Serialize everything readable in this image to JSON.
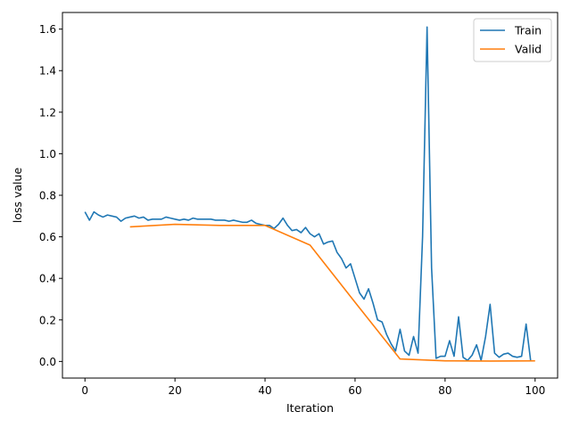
{
  "chart_data": {
    "type": "line",
    "title": "",
    "xlabel": "Iteration",
    "ylabel": "loss value",
    "xlim": [
      -5,
      105
    ],
    "ylim": [
      -0.08,
      1.68
    ],
    "xticks": [
      0,
      20,
      40,
      60,
      80,
      100
    ],
    "yticks": [
      0.0,
      0.2,
      0.4,
      0.6,
      0.8,
      1.0,
      1.2,
      1.4,
      1.6
    ],
    "xtick_labels": [
      "0",
      "20",
      "40",
      "60",
      "80",
      "100"
    ],
    "ytick_labels": [
      "0.0",
      "0.2",
      "0.4",
      "0.6",
      "0.8",
      "1.0",
      "1.2",
      "1.4",
      "1.6"
    ],
    "grid": false,
    "legend": "top-right",
    "series": [
      {
        "name": "Train",
        "color": "#1f77b4",
        "x": [
          0,
          1,
          2,
          3,
          4,
          5,
          6,
          7,
          8,
          9,
          10,
          11,
          12,
          13,
          14,
          15,
          16,
          17,
          18,
          19,
          20,
          21,
          22,
          23,
          24,
          25,
          26,
          27,
          28,
          29,
          30,
          31,
          32,
          33,
          34,
          35,
          36,
          37,
          38,
          39,
          40,
          41,
          42,
          43,
          44,
          45,
          46,
          47,
          48,
          49,
          50,
          51,
          52,
          53,
          54,
          55,
          56,
          57,
          58,
          59,
          60,
          61,
          62,
          63,
          64,
          65,
          66,
          67,
          68,
          69,
          70,
          71,
          72,
          73,
          74,
          75,
          76,
          77,
          78,
          79,
          80,
          81,
          82,
          83,
          84,
          85,
          86,
          87,
          88,
          89,
          90,
          91,
          92,
          93,
          94,
          95,
          96,
          97,
          98,
          99
        ],
        "y": [
          0.72,
          0.68,
          0.72,
          0.705,
          0.695,
          0.705,
          0.7,
          0.695,
          0.675,
          0.69,
          0.695,
          0.7,
          0.69,
          0.695,
          0.68,
          0.685,
          0.685,
          0.685,
          0.695,
          0.69,
          0.685,
          0.68,
          0.685,
          0.68,
          0.69,
          0.685,
          0.685,
          0.685,
          0.685,
          0.68,
          0.68,
          0.68,
          0.675,
          0.68,
          0.675,
          0.67,
          0.67,
          0.68,
          0.665,
          0.66,
          0.655,
          0.655,
          0.64,
          0.66,
          0.69,
          0.655,
          0.63,
          0.635,
          0.62,
          0.645,
          0.615,
          0.6,
          0.615,
          0.565,
          0.575,
          0.58,
          0.525,
          0.495,
          0.45,
          0.47,
          0.4,
          0.33,
          0.3,
          0.35,
          0.28,
          0.2,
          0.19,
          0.13,
          0.085,
          0.05,
          0.155,
          0.05,
          0.03,
          0.12,
          0.04,
          0.6,
          1.61,
          0.45,
          0.015,
          0.025,
          0.025,
          0.1,
          0.025,
          0.215,
          0.02,
          0.005,
          0.03,
          0.08,
          0.005,
          0.12,
          0.275,
          0.04,
          0.02,
          0.035,
          0.04,
          0.025,
          0.02,
          0.025,
          0.18,
          0.005
        ]
      },
      {
        "name": "Valid",
        "color": "#ff7f0e",
        "x": [
          10,
          20,
          30,
          40,
          50,
          60,
          70,
          80,
          90,
          100
        ],
        "y": [
          0.648,
          0.66,
          0.655,
          0.655,
          0.56,
          0.285,
          0.012,
          0.003,
          0.002,
          0.003
        ]
      }
    ]
  }
}
